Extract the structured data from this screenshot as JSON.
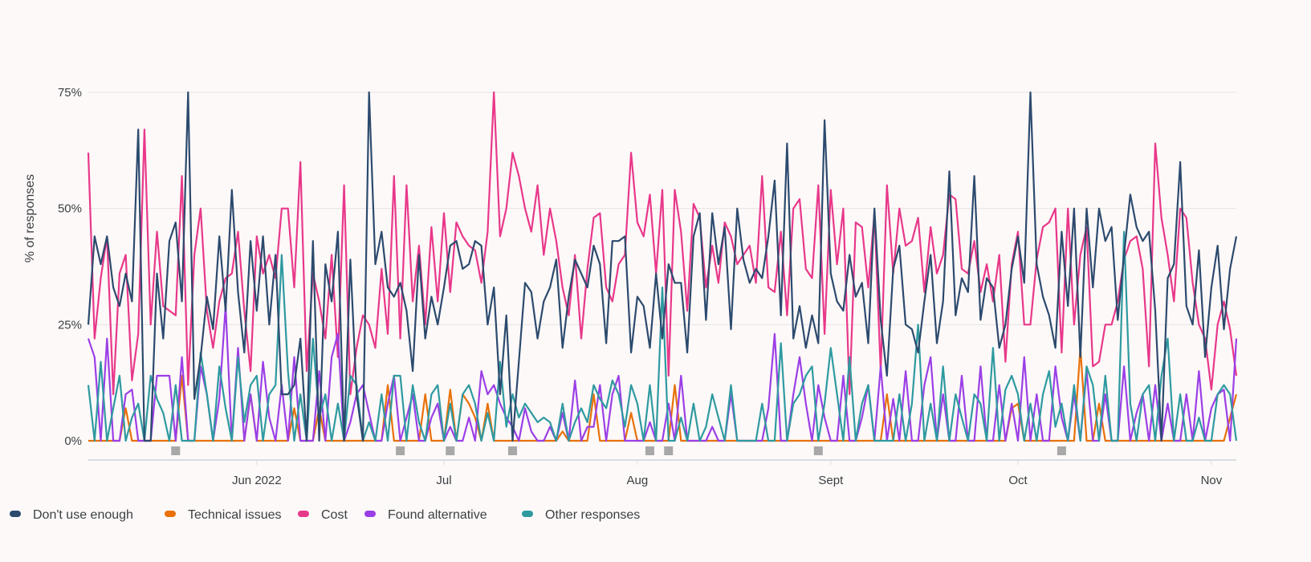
{
  "chart_data": {
    "type": "line",
    "title": "",
    "xlabel": "",
    "ylabel": "% of responses",
    "ylim": [
      0,
      75
    ],
    "y_ticks": [
      "0%",
      "25%",
      "50%",
      "75%"
    ],
    "y_tick_values": [
      0,
      25,
      50,
      75
    ],
    "x_start": "2022-05-05",
    "x_end": "2022-11-05",
    "x_ticks": [
      {
        "date": "2022-06-01",
        "label": "Jun 2022"
      },
      {
        "date": "2022-07-01",
        "label": "Jul"
      },
      {
        "date": "2022-08-01",
        "label": "Aug"
      },
      {
        "date": "2022-09-01",
        "label": "Sept"
      },
      {
        "date": "2022-10-01",
        "label": "Oct"
      },
      {
        "date": "2022-11-01",
        "label": "Nov"
      }
    ],
    "annotation_dates": [
      "2022-05-19",
      "2022-06-24",
      "2022-07-02",
      "2022-07-12",
      "2022-08-03",
      "2022-08-06",
      "2022-08-30",
      "2022-10-08"
    ],
    "grid": true,
    "legend_position": "bottom",
    "series": [
      {
        "name": "Don't use enough",
        "color": "#2c4a6e",
        "values": [
          25,
          44,
          38,
          44,
          33,
          29,
          36,
          30,
          67,
          0,
          0,
          36,
          22,
          43,
          47,
          30,
          75,
          9,
          18,
          31,
          24,
          44,
          28,
          54,
          32,
          19,
          43,
          28,
          44,
          25,
          40,
          10,
          10,
          12,
          22,
          0,
          43,
          0,
          38,
          30,
          45,
          0,
          39,
          10,
          0,
          75,
          38,
          45,
          33,
          31,
          34,
          28,
          15,
          40,
          22,
          31,
          25,
          33,
          42,
          43,
          37,
          38,
          43,
          42,
          25,
          33,
          10,
          27,
          0,
          17,
          34,
          32,
          22,
          30,
          33,
          39,
          20,
          31,
          39,
          36,
          33,
          42,
          38,
          21,
          43,
          43,
          44,
          19,
          31,
          29,
          20,
          36,
          22,
          38,
          34,
          34,
          19,
          44,
          49,
          26,
          49,
          38,
          46,
          24,
          50,
          39,
          34,
          37,
          35,
          44,
          56,
          27,
          64,
          22,
          29,
          20,
          27,
          21,
          69,
          36,
          30,
          28,
          40,
          31,
          34,
          21,
          50,
          26,
          14,
          37,
          42,
          25,
          24,
          19,
          30,
          40,
          21,
          30,
          58,
          27,
          35,
          32,
          57,
          26,
          35,
          33,
          20,
          25,
          37,
          44,
          34,
          75,
          38,
          31,
          27,
          20,
          45,
          29,
          50,
          18,
          50,
          33,
          50,
          43,
          46,
          26,
          40,
          53,
          46,
          43,
          45,
          28,
          0,
          35,
          38,
          60,
          29,
          25,
          41,
          18,
          33,
          42,
          24,
          37,
          44
        ]
      },
      {
        "name": "Technical issues",
        "color": "#e8710a",
        "values": [
          0,
          0,
          0,
          0,
          0,
          0,
          7,
          0,
          0,
          0,
          0,
          0,
          0,
          0,
          0,
          14,
          0,
          0,
          0,
          0,
          0,
          0,
          0,
          0,
          0,
          0,
          10,
          0,
          0,
          0,
          0,
          0,
          0,
          7,
          0,
          0,
          0,
          7,
          0,
          0,
          0,
          0,
          0,
          0,
          0,
          0,
          0,
          0,
          12,
          0,
          0,
          0,
          0,
          0,
          10,
          0,
          0,
          0,
          11,
          0,
          10,
          8,
          5,
          0,
          8,
          0,
          0,
          0,
          0,
          0,
          0,
          0,
          0,
          0,
          0,
          0,
          2,
          0,
          0,
          0,
          0,
          10,
          0,
          0,
          0,
          0,
          0,
          6,
          0,
          0,
          0,
          0,
          0,
          0,
          12,
          0,
          0,
          0,
          0,
          0,
          0,
          0,
          0,
          0,
          0,
          0,
          0,
          0,
          0,
          0,
          0,
          0,
          0,
          0,
          0,
          0,
          0,
          0,
          0,
          0,
          0,
          0,
          0,
          0,
          0,
          0,
          0,
          0,
          10,
          0,
          0,
          0,
          0,
          0,
          0,
          0,
          0,
          0,
          0,
          0,
          0,
          0,
          0,
          0,
          0,
          0,
          0,
          0,
          7,
          8,
          0,
          0,
          0,
          0,
          0,
          0,
          0,
          0,
          0,
          20,
          0,
          0,
          8,
          0,
          0,
          0,
          0,
          0,
          0,
          0,
          0,
          0,
          0,
          0,
          0,
          0,
          0,
          0,
          0,
          0,
          0,
          0,
          0,
          5,
          10
        ]
      },
      {
        "name": "Cost",
        "color": "#e8388a",
        "values": [
          62,
          22,
          35,
          44,
          10,
          36,
          40,
          13,
          23,
          67,
          25,
          45,
          29,
          28,
          27,
          57,
          12,
          40,
          50,
          28,
          20,
          30,
          35,
          36,
          45,
          28,
          15,
          44,
          36,
          40,
          35,
          50,
          50,
          33,
          60,
          15,
          36,
          30,
          22,
          40,
          18,
          55,
          10,
          20,
          27,
          25,
          20,
          37,
          23,
          57,
          22,
          55,
          30,
          42,
          25,
          46,
          30,
          49,
          32,
          47,
          44,
          42,
          41,
          34,
          45,
          75,
          44,
          50,
          62,
          57,
          50,
          45,
          55,
          40,
          50,
          43,
          33,
          27,
          40,
          22,
          37,
          48,
          49,
          33,
          30,
          38,
          40,
          62,
          47,
          44,
          53,
          36,
          54,
          14,
          54,
          45,
          28,
          51,
          48,
          33,
          42,
          34,
          47,
          44,
          38,
          40,
          42,
          34,
          57,
          33,
          32,
          45,
          27,
          50,
          52,
          37,
          35,
          55,
          23,
          54,
          38,
          50,
          10,
          47,
          46,
          33,
          49,
          15,
          55,
          36,
          50,
          42,
          43,
          48,
          32,
          46,
          36,
          40,
          53,
          52,
          37,
          36,
          43,
          32,
          38,
          30,
          40,
          17,
          38,
          45,
          25,
          25,
          39,
          46,
          47,
          50,
          19,
          50,
          25,
          40,
          46,
          16,
          17,
          25,
          25,
          30,
          39,
          43,
          44,
          37,
          16,
          64,
          48,
          40,
          30,
          50,
          48,
          34,
          25,
          22,
          11,
          25,
          30,
          24,
          14
        ]
      },
      {
        "name": "Found alternative",
        "color": "#9b3fe6",
        "values": [
          22,
          18,
          0,
          22,
          0,
          0,
          10,
          11,
          0,
          0,
          0,
          14,
          14,
          14,
          0,
          18,
          0,
          0,
          16,
          10,
          0,
          9,
          29,
          0,
          20,
          0,
          10,
          0,
          17,
          5,
          0,
          12,
          0,
          18,
          0,
          0,
          0,
          15,
          0,
          18,
          23,
          0,
          4,
          10,
          12,
          6,
          0,
          0,
          8,
          14,
          0,
          5,
          10,
          0,
          0,
          5,
          8,
          0,
          3,
          0,
          0,
          5,
          0,
          15,
          10,
          12,
          8,
          5,
          3,
          0,
          7,
          2,
          0,
          0,
          3,
          0,
          6,
          0,
          13,
          0,
          3,
          3,
          12,
          0,
          10,
          14,
          0,
          0,
          0,
          0,
          4,
          0,
          0,
          8,
          0,
          14,
          0,
          0,
          0,
          0,
          3,
          0,
          0,
          10,
          0,
          0,
          0,
          0,
          0,
          7,
          23,
          0,
          0,
          10,
          18,
          8,
          0,
          12,
          5,
          0,
          0,
          14,
          0,
          0,
          5,
          12,
          0,
          16,
          0,
          9,
          0,
          15,
          0,
          0,
          12,
          18,
          0,
          10,
          0,
          0,
          14,
          0,
          0,
          16,
          0,
          0,
          12,
          0,
          8,
          0,
          18,
          0,
          10,
          0,
          0,
          16,
          5,
          0,
          10,
          0,
          15,
          0,
          0,
          10,
          0,
          0,
          16,
          0,
          6,
          10,
          0,
          12,
          0,
          8,
          0,
          0,
          10,
          0,
          15,
          0,
          7,
          10,
          11,
          0,
          22
        ]
      },
      {
        "name": "Other responses",
        "color": "#2e9aa0",
        "values": [
          12,
          0,
          17,
          0,
          7,
          14,
          0,
          5,
          8,
          0,
          14,
          9,
          6,
          0,
          12,
          0,
          0,
          0,
          19,
          10,
          0,
          16,
          7,
          0,
          18,
          4,
          12,
          14,
          0,
          10,
          12,
          40,
          15,
          0,
          10,
          0,
          22,
          5,
          10,
          0,
          8,
          0,
          14,
          12,
          0,
          4,
          0,
          10,
          0,
          14,
          14,
          0,
          12,
          4,
          0,
          10,
          12,
          0,
          8,
          0,
          10,
          12,
          8,
          0,
          6,
          0,
          17,
          3,
          10,
          5,
          8,
          6,
          4,
          5,
          4,
          0,
          8,
          0,
          4,
          7,
          4,
          12,
          9,
          7,
          13,
          10,
          3,
          12,
          8,
          0,
          12,
          0,
          33,
          0,
          0,
          5,
          0,
          8,
          0,
          3,
          10,
          5,
          0,
          12,
          0,
          0,
          0,
          0,
          8,
          0,
          0,
          21,
          0,
          8,
          10,
          14,
          16,
          0,
          8,
          20,
          10,
          0,
          18,
          0,
          8,
          12,
          0,
          0,
          0,
          0,
          10,
          0,
          8,
          25,
          0,
          8,
          0,
          16,
          0,
          10,
          5,
          0,
          10,
          8,
          0,
          20,
          0,
          11,
          14,
          10,
          0,
          8,
          0,
          10,
          15,
          3,
          8,
          0,
          12,
          0,
          16,
          12,
          0,
          14,
          0,
          0,
          45,
          8,
          0,
          10,
          12,
          0,
          14,
          22,
          0,
          10,
          0,
          0,
          5,
          0,
          0,
          10,
          12,
          10,
          0
        ]
      }
    ]
  }
}
